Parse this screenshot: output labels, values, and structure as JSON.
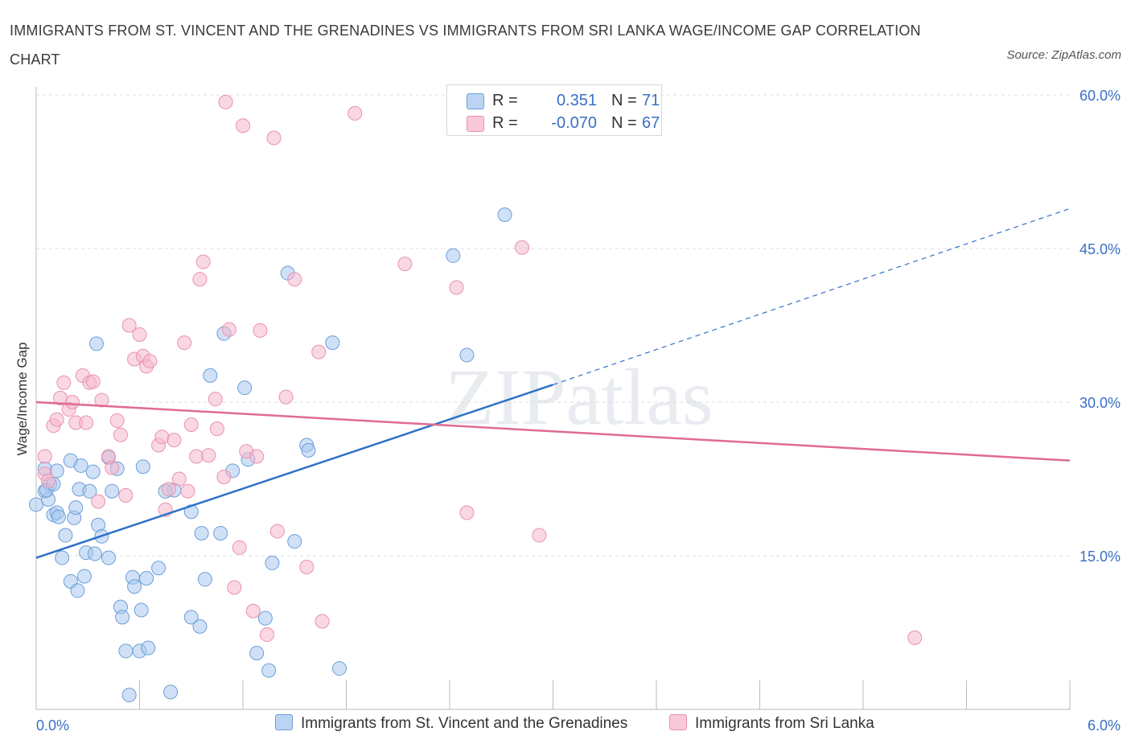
{
  "title": "IMMIGRANTS FROM ST. VINCENT AND THE GRENADINES VS IMMIGRANTS FROM SRI LANKA WAGE/INCOME GAP CORRELATION CHART",
  "source": "Source: ZipAtlas.com",
  "watermark": "ZIPatlas",
  "legend": {
    "r_label": "R =",
    "n_label": "N =",
    "series1": {
      "r": "0.351",
      "n": "71"
    },
    "series2": {
      "r": "-0.070",
      "n": "67"
    }
  },
  "colors": {
    "series1_fill": "#a9c8f0",
    "series1_stroke": "#6b9fd8",
    "series1_line": "#2f72c8",
    "series2_fill": "#f5b8cc",
    "series2_stroke": "#e892ae",
    "series2_line": "#e06a94",
    "tick_text": "#3a6fc4",
    "grid": "#dddddd"
  },
  "chart_data": {
    "type": "scatter",
    "xlabel": "",
    "ylabel": "Wage/Income Gap",
    "xlim": [
      0,
      6
    ],
    "ylim": [
      0,
      60
    ],
    "x_tick_labels": [
      "0.0%",
      "6.0%"
    ],
    "y_ticks": [
      15,
      30,
      45,
      60
    ],
    "y_tick_labels": [
      "15.0%",
      "30.0%",
      "45.0%",
      "60.0%"
    ],
    "grid": true,
    "legend_position": "top-center",
    "series": [
      {
        "name": "Immigrants from St. Vincent and the Grenadines",
        "r": 0.351,
        "n": 71,
        "trend": {
          "x0": 0,
          "y0": 14.8,
          "x1": 3.0,
          "y1": 31.7,
          "dashed_to_x": 6.0,
          "dashed_to_y": 48.9
        },
        "points": [
          [
            0.0,
            20.0
          ],
          [
            0.05,
            23.5
          ],
          [
            0.05,
            21.3
          ],
          [
            0.07,
            20.5
          ],
          [
            0.08,
            22.0
          ],
          [
            0.1,
            19.0
          ],
          [
            0.12,
            23.3
          ],
          [
            0.12,
            19.2
          ],
          [
            0.13,
            18.8
          ],
          [
            0.15,
            14.8
          ],
          [
            0.17,
            17.0
          ],
          [
            0.2,
            12.5
          ],
          [
            0.2,
            24.3
          ],
          [
            0.22,
            18.7
          ],
          [
            0.23,
            19.7
          ],
          [
            0.24,
            11.6
          ],
          [
            0.25,
            21.5
          ],
          [
            0.26,
            23.8
          ],
          [
            0.28,
            13.0
          ],
          [
            0.29,
            15.3
          ],
          [
            0.31,
            21.3
          ],
          [
            0.33,
            23.2
          ],
          [
            0.34,
            15.2
          ],
          [
            0.36,
            18.0
          ],
          [
            0.38,
            16.9
          ],
          [
            0.42,
            14.8
          ],
          [
            0.44,
            21.3
          ],
          [
            0.47,
            23.5
          ],
          [
            0.49,
            10.0
          ],
          [
            0.5,
            9.0
          ],
          [
            0.52,
            5.7
          ],
          [
            0.54,
            1.4
          ],
          [
            0.56,
            12.9
          ],
          [
            0.57,
            12.0
          ],
          [
            0.6,
            5.7
          ],
          [
            0.61,
            9.7
          ],
          [
            0.62,
            23.7
          ],
          [
            0.64,
            12.8
          ],
          [
            0.65,
            6.0
          ],
          [
            0.71,
            13.8
          ],
          [
            0.78,
            1.7
          ],
          [
            0.8,
            21.4
          ],
          [
            0.9,
            19.3
          ],
          [
            0.9,
            9.0
          ],
          [
            0.95,
            8.1
          ],
          [
            0.96,
            17.2
          ],
          [
            0.98,
            12.7
          ],
          [
            1.01,
            32.6
          ],
          [
            1.07,
            17.2
          ],
          [
            1.09,
            36.7
          ],
          [
            1.14,
            23.3
          ],
          [
            1.21,
            31.4
          ],
          [
            1.23,
            24.4
          ],
          [
            1.28,
            5.5
          ],
          [
            1.33,
            8.9
          ],
          [
            1.35,
            3.8
          ],
          [
            1.37,
            14.3
          ],
          [
            1.46,
            42.6
          ],
          [
            1.5,
            16.4
          ],
          [
            1.57,
            25.8
          ],
          [
            1.58,
            25.3
          ],
          [
            1.72,
            35.8
          ],
          [
            1.76,
            4.0
          ],
          [
            2.42,
            44.3
          ],
          [
            2.5,
            34.6
          ],
          [
            2.72,
            48.3
          ],
          [
            0.42,
            24.6
          ],
          [
            0.35,
            35.7
          ],
          [
            0.06,
            21.4
          ],
          [
            0.75,
            21.3
          ],
          [
            0.1,
            22.0
          ]
        ]
      },
      {
        "name": "Immigrants from Sri Lanka",
        "r": -0.07,
        "n": 67,
        "trend": {
          "x0": 0,
          "y0": 30.0,
          "x1": 6.0,
          "y1": 24.3
        },
        "points": [
          [
            0.05,
            24.7
          ],
          [
            0.05,
            23.0
          ],
          [
            0.07,
            22.3
          ],
          [
            0.1,
            27.7
          ],
          [
            0.12,
            28.3
          ],
          [
            0.14,
            30.4
          ],
          [
            0.16,
            31.9
          ],
          [
            0.19,
            29.3
          ],
          [
            0.21,
            30.0
          ],
          [
            0.23,
            28.0
          ],
          [
            0.27,
            32.6
          ],
          [
            0.29,
            28.0
          ],
          [
            0.31,
            31.9
          ],
          [
            0.33,
            32.0
          ],
          [
            0.36,
            20.3
          ],
          [
            0.38,
            30.2
          ],
          [
            0.42,
            24.7
          ],
          [
            0.44,
            23.6
          ],
          [
            0.47,
            28.2
          ],
          [
            0.49,
            26.8
          ],
          [
            0.52,
            20.9
          ],
          [
            0.54,
            37.5
          ],
          [
            0.57,
            34.2
          ],
          [
            0.6,
            36.6
          ],
          [
            0.62,
            34.5
          ],
          [
            0.64,
            33.5
          ],
          [
            0.66,
            34.0
          ],
          [
            0.71,
            25.8
          ],
          [
            0.73,
            26.6
          ],
          [
            0.75,
            19.5
          ],
          [
            0.77,
            21.5
          ],
          [
            0.8,
            26.3
          ],
          [
            0.83,
            22.5
          ],
          [
            0.86,
            35.8
          ],
          [
            0.88,
            21.3
          ],
          [
            0.9,
            27.8
          ],
          [
            0.93,
            24.7
          ],
          [
            0.95,
            42.0
          ],
          [
            0.97,
            43.7
          ],
          [
            1.0,
            24.8
          ],
          [
            1.04,
            30.3
          ],
          [
            1.05,
            27.4
          ],
          [
            1.09,
            22.7
          ],
          [
            1.12,
            37.1
          ],
          [
            1.15,
            11.9
          ],
          [
            1.18,
            15.8
          ],
          [
            1.22,
            25.2
          ],
          [
            1.26,
            9.6
          ],
          [
            1.28,
            24.7
          ],
          [
            1.3,
            37.0
          ],
          [
            1.34,
            7.3
          ],
          [
            1.4,
            17.4
          ],
          [
            1.45,
            30.5
          ],
          [
            1.5,
            42.0
          ],
          [
            1.57,
            13.9
          ],
          [
            1.64,
            34.9
          ],
          [
            1.66,
            8.6
          ],
          [
            2.44,
            41.2
          ],
          [
            2.5,
            19.2
          ],
          [
            2.82,
            45.1
          ],
          [
            1.85,
            58.2
          ],
          [
            1.1,
            59.3
          ],
          [
            1.2,
            57.0
          ],
          [
            1.38,
            55.8
          ],
          [
            2.14,
            43.5
          ],
          [
            2.92,
            17.0
          ],
          [
            5.1,
            7.0
          ]
        ]
      }
    ]
  }
}
